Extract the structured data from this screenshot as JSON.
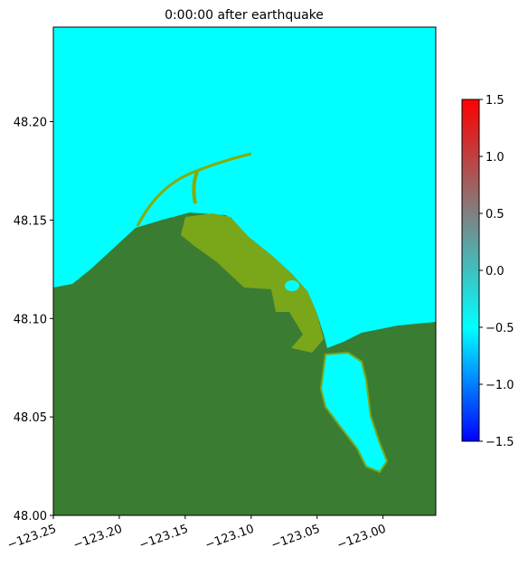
{
  "chart_data": {
    "type": "map",
    "title": "0:00:00 after earthquake",
    "xlim": [
      -123.25,
      -122.96
    ],
    "ylim": [
      48.0,
      48.248
    ],
    "xticks": [
      {
        "value": -123.25,
        "label": "−123.25"
      },
      {
        "value": -123.2,
        "label": "−123.20"
      },
      {
        "value": -123.15,
        "label": "−123.15"
      },
      {
        "value": -123.1,
        "label": "−123.10"
      },
      {
        "value": -123.05,
        "label": "−123.05"
      },
      {
        "value": -123.0,
        "label": "−123.00"
      }
    ],
    "yticks": [
      {
        "value": 48.0,
        "label": "48.00"
      },
      {
        "value": 48.05,
        "label": "48.05"
      },
      {
        "value": 48.1,
        "label": "48.10"
      },
      {
        "value": 48.15,
        "label": "48.15"
      },
      {
        "value": 48.2,
        "label": "48.20"
      }
    ],
    "colorbar": {
      "clim": [
        -1.5,
        1.5
      ],
      "colors": [
        "#0000ff",
        "#00ffff",
        "#808080",
        "#ff0000"
      ],
      "ticks": [
        {
          "value": -1.5,
          "label": "−1.5"
        },
        {
          "value": -1.0,
          "label": "−1.0"
        },
        {
          "value": -0.5,
          "label": "−0.5"
        },
        {
          "value": 0,
          "label": "0.0"
        },
        0.5,
        {
          "value": 1.0,
          "label": "1.0"
        },
        1.5
      ]
    }
  }
}
